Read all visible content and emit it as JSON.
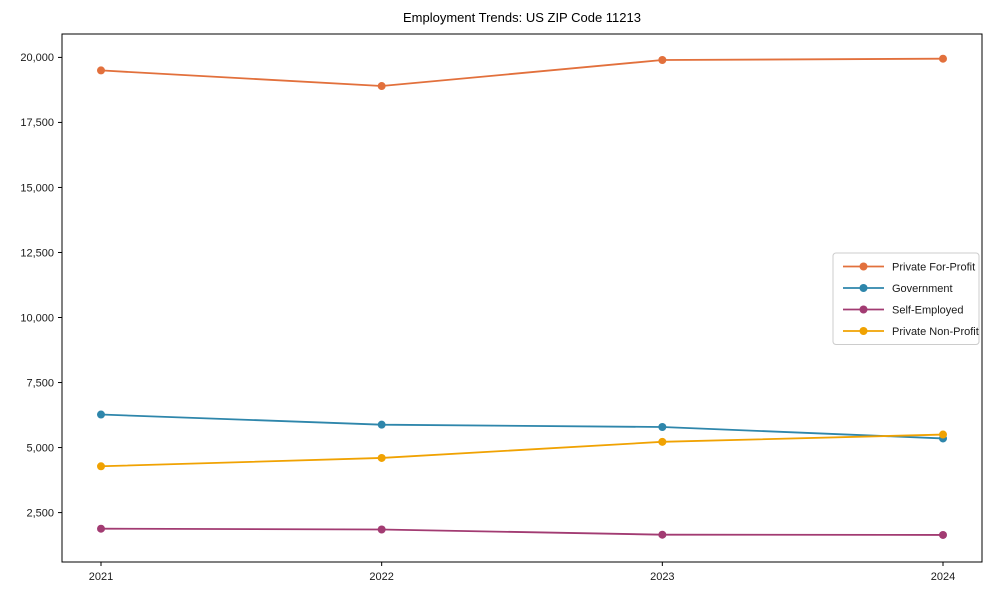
{
  "title": "Employment Trends: US ZIP Code 11213",
  "chart_data": {
    "type": "line",
    "title": "Employment Trends: US ZIP Code 11213",
    "x": [
      "2021",
      "2022",
      "2023",
      "2024"
    ],
    "series": [
      {
        "name": "Private For-Profit",
        "color": "#E2703C",
        "values": [
          19500,
          18900,
          19900,
          19950
        ]
      },
      {
        "name": "Government",
        "color": "#2E86AB",
        "values": [
          6270,
          5880,
          5790,
          5350
        ]
      },
      {
        "name": "Self-Employed",
        "color": "#A23B72",
        "values": [
          1880,
          1850,
          1650,
          1640
        ]
      },
      {
        "name": "Private Non-Profit",
        "color": "#F0A202",
        "values": [
          4280,
          4600,
          5220,
          5500
        ]
      }
    ],
    "xlabel": "",
    "ylabel": "",
    "ylim": [
      600,
      20900
    ],
    "yticks": [
      2500,
      5000,
      7500,
      10000,
      12500,
      15000,
      17500,
      20000
    ],
    "grid": false,
    "legend_position": "center-right",
    "axis_color": "#000000",
    "tick_label_color": "#1a1a1a",
    "legend_border_color": "#cccccc",
    "background_color": "#ffffff"
  }
}
